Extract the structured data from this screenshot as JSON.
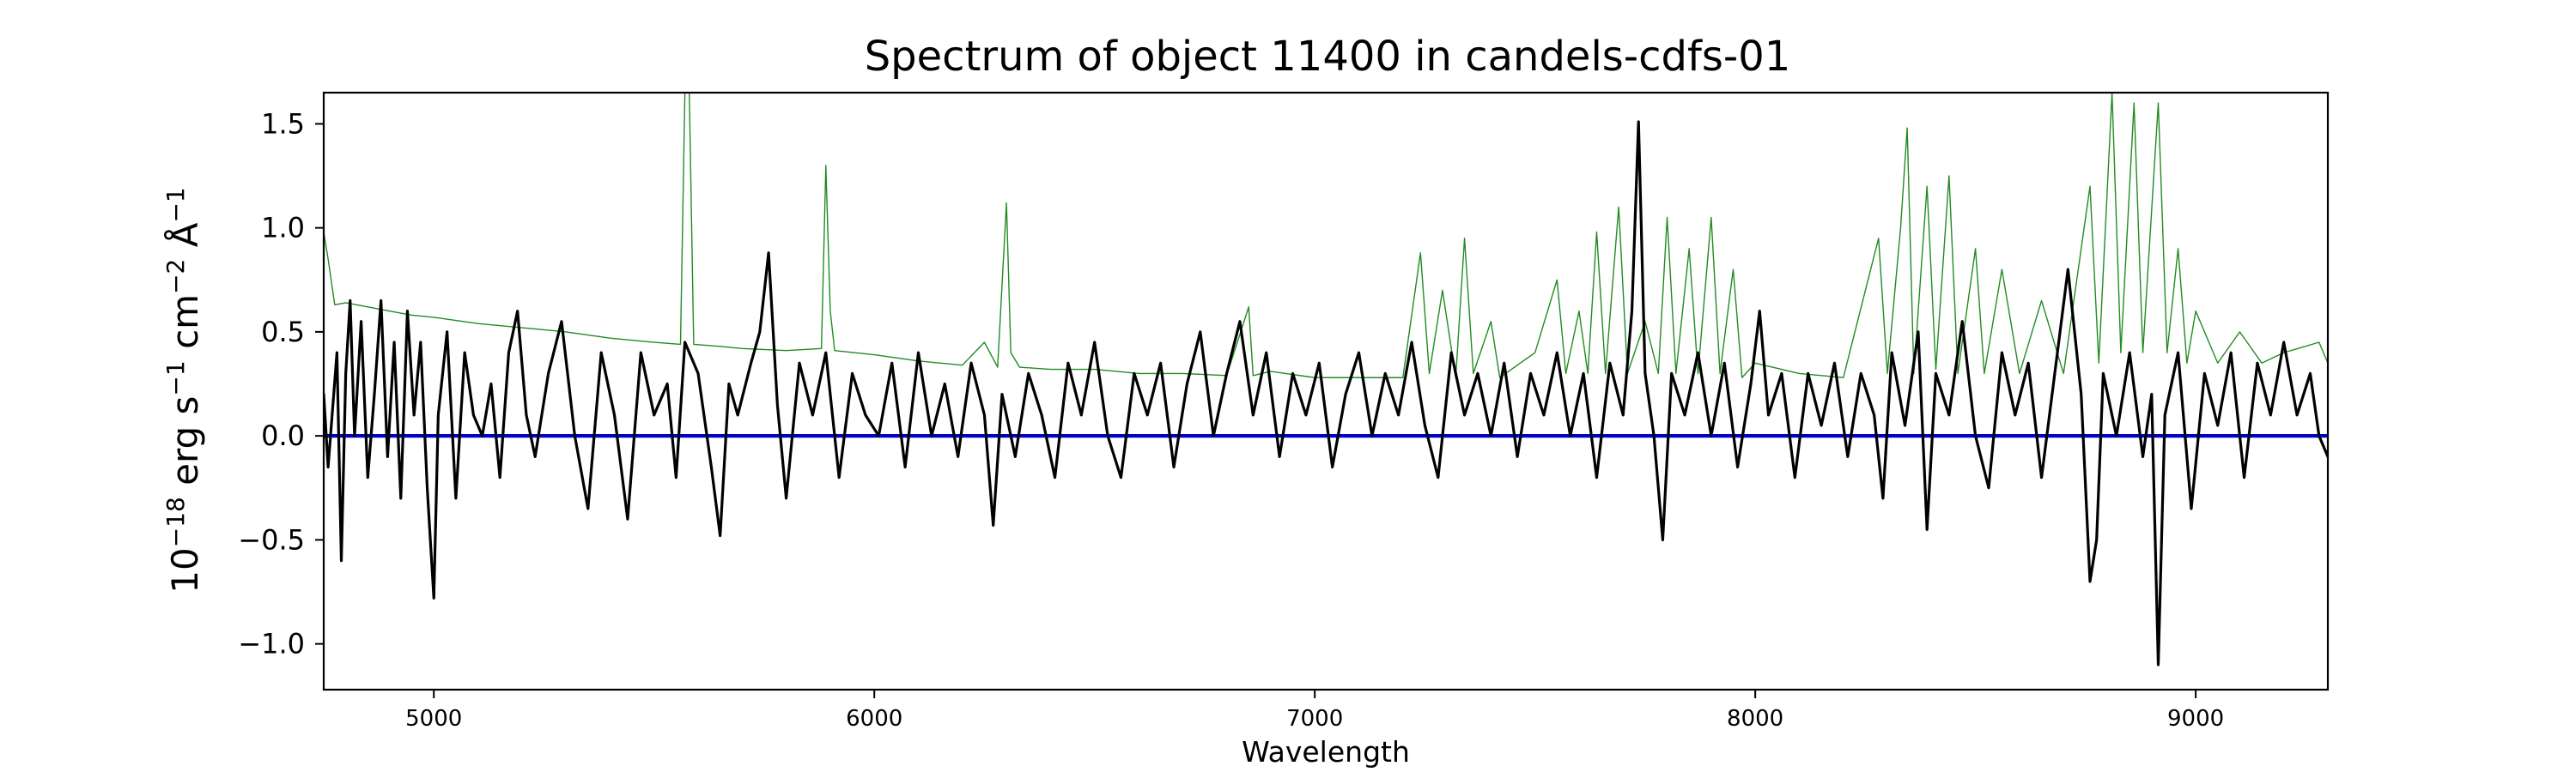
{
  "chart_data": {
    "type": "line",
    "title": "Spectrum of object 11400 in candels-cdfs-01",
    "xlabel": "Wavelength",
    "ylabel": "10^{−18} erg s^{−1} cm^{−2} Å^{−1}",
    "xlim": [
      4750,
      9300
    ],
    "ylim": [
      -1.22,
      1.65
    ],
    "x_ticks": [
      5000,
      6000,
      7000,
      8000,
      9000
    ],
    "x_tick_labels": [
      "5000",
      "6000",
      "7000",
      "8000",
      "9000"
    ],
    "y_ticks": [
      -1.0,
      -0.5,
      0.0,
      0.5,
      1.0,
      1.5
    ],
    "y_tick_labels": [
      "−1.0",
      "−0.5",
      "0.0",
      "0.5",
      "1.0",
      "1.5"
    ],
    "grid": false,
    "legend": "none",
    "colors": {
      "flux": "#000000",
      "noise": "#228b22",
      "zero": "#0000cd"
    },
    "series": [
      {
        "role": "flux",
        "color": "#000000",
        "points": [
          [
            4750,
            0.2
          ],
          [
            4760,
            -0.15
          ],
          [
            4780,
            0.4
          ],
          [
            4790,
            -0.6
          ],
          [
            4800,
            0.3
          ],
          [
            4810,
            0.65
          ],
          [
            4820,
            0.0
          ],
          [
            4835,
            0.55
          ],
          [
            4850,
            -0.2
          ],
          [
            4865,
            0.2
          ],
          [
            4880,
            0.65
          ],
          [
            4895,
            -0.1
          ],
          [
            4910,
            0.45
          ],
          [
            4925,
            -0.3
          ],
          [
            4940,
            0.6
          ],
          [
            4955,
            0.1
          ],
          [
            4970,
            0.45
          ],
          [
            4985,
            -0.25
          ],
          [
            5000,
            -0.78
          ],
          [
            5010,
            0.1
          ],
          [
            5030,
            0.5
          ],
          [
            5050,
            -0.3
          ],
          [
            5070,
            0.4
          ],
          [
            5090,
            0.1
          ],
          [
            5110,
            0.0
          ],
          [
            5130,
            0.25
          ],
          [
            5150,
            -0.2
          ],
          [
            5170,
            0.4
          ],
          [
            5190,
            0.6
          ],
          [
            5210,
            0.1
          ],
          [
            5230,
            -0.1
          ],
          [
            5260,
            0.3
          ],
          [
            5290,
            0.55
          ],
          [
            5320,
            0.0
          ],
          [
            5350,
            -0.35
          ],
          [
            5380,
            0.4
          ],
          [
            5410,
            0.1
          ],
          [
            5440,
            -0.4
          ],
          [
            5470,
            0.4
          ],
          [
            5500,
            0.1
          ],
          [
            5530,
            0.25
          ],
          [
            5550,
            -0.2
          ],
          [
            5570,
            0.45
          ],
          [
            5600,
            0.3
          ],
          [
            5630,
            -0.15
          ],
          [
            5650,
            -0.48
          ],
          [
            5670,
            0.25
          ],
          [
            5690,
            0.1
          ],
          [
            5720,
            0.35
          ],
          [
            5740,
            0.5
          ],
          [
            5760,
            0.88
          ],
          [
            5780,
            0.15
          ],
          [
            5800,
            -0.3
          ],
          [
            5830,
            0.35
          ],
          [
            5860,
            0.1
          ],
          [
            5890,
            0.4
          ],
          [
            5920,
            -0.2
          ],
          [
            5950,
            0.3
          ],
          [
            5980,
            0.1
          ],
          [
            6010,
            0.0
          ],
          [
            6040,
            0.35
          ],
          [
            6070,
            -0.15
          ],
          [
            6100,
            0.4
          ],
          [
            6130,
            0.0
          ],
          [
            6160,
            0.25
          ],
          [
            6190,
            -0.1
          ],
          [
            6220,
            0.35
          ],
          [
            6250,
            0.1
          ],
          [
            6270,
            -0.43
          ],
          [
            6290,
            0.2
          ],
          [
            6320,
            -0.1
          ],
          [
            6350,
            0.3
          ],
          [
            6380,
            0.1
          ],
          [
            6410,
            -0.2
          ],
          [
            6440,
            0.35
          ],
          [
            6470,
            0.1
          ],
          [
            6500,
            0.45
          ],
          [
            6530,
            0.0
          ],
          [
            6560,
            -0.2
          ],
          [
            6590,
            0.3
          ],
          [
            6620,
            0.1
          ],
          [
            6650,
            0.35
          ],
          [
            6680,
            -0.15
          ],
          [
            6710,
            0.25
          ],
          [
            6740,
            0.5
          ],
          [
            6770,
            0.0
          ],
          [
            6800,
            0.3
          ],
          [
            6830,
            0.55
          ],
          [
            6860,
            0.1
          ],
          [
            6890,
            0.4
          ],
          [
            6920,
            -0.1
          ],
          [
            6950,
            0.3
          ],
          [
            6980,
            0.1
          ],
          [
            7010,
            0.35
          ],
          [
            7040,
            -0.15
          ],
          [
            7070,
            0.2
          ],
          [
            7100,
            0.4
          ],
          [
            7130,
            0.0
          ],
          [
            7160,
            0.3
          ],
          [
            7190,
            0.1
          ],
          [
            7220,
            0.45
          ],
          [
            7250,
            0.05
          ],
          [
            7280,
            -0.2
          ],
          [
            7310,
            0.4
          ],
          [
            7340,
            0.1
          ],
          [
            7370,
            0.3
          ],
          [
            7400,
            0.0
          ],
          [
            7430,
            0.35
          ],
          [
            7460,
            -0.1
          ],
          [
            7490,
            0.3
          ],
          [
            7520,
            0.1
          ],
          [
            7550,
            0.4
          ],
          [
            7580,
            0.0
          ],
          [
            7610,
            0.3
          ],
          [
            7640,
            -0.2
          ],
          [
            7670,
            0.35
          ],
          [
            7700,
            0.1
          ],
          [
            7720,
            0.6
          ],
          [
            7735,
            1.51
          ],
          [
            7750,
            0.3
          ],
          [
            7770,
            0.0
          ],
          [
            7790,
            -0.5
          ],
          [
            7810,
            0.3
          ],
          [
            7840,
            0.1
          ],
          [
            7870,
            0.4
          ],
          [
            7900,
            0.0
          ],
          [
            7930,
            0.35
          ],
          [
            7960,
            -0.15
          ],
          [
            7990,
            0.25
          ],
          [
            8010,
            0.6
          ],
          [
            8030,
            0.1
          ],
          [
            8060,
            0.3
          ],
          [
            8090,
            -0.2
          ],
          [
            8120,
            0.3
          ],
          [
            8150,
            0.05
          ],
          [
            8180,
            0.35
          ],
          [
            8210,
            -0.1
          ],
          [
            8240,
            0.3
          ],
          [
            8270,
            0.1
          ],
          [
            8290,
            -0.3
          ],
          [
            8310,
            0.4
          ],
          [
            8340,
            0.05
          ],
          [
            8370,
            0.5
          ],
          [
            8390,
            -0.45
          ],
          [
            8410,
            0.3
          ],
          [
            8440,
            0.1
          ],
          [
            8470,
            0.55
          ],
          [
            8500,
            0.0
          ],
          [
            8530,
            -0.25
          ],
          [
            8560,
            0.4
          ],
          [
            8590,
            0.1
          ],
          [
            8620,
            0.35
          ],
          [
            8650,
            -0.2
          ],
          [
            8680,
            0.3
          ],
          [
            8710,
            0.8
          ],
          [
            8740,
            0.2
          ],
          [
            8760,
            -0.7
          ],
          [
            8775,
            -0.5
          ],
          [
            8790,
            0.3
          ],
          [
            8820,
            0.0
          ],
          [
            8850,
            0.4
          ],
          [
            8880,
            -0.1
          ],
          [
            8900,
            0.2
          ],
          [
            8915,
            -1.1
          ],
          [
            8930,
            0.1
          ],
          [
            8960,
            0.4
          ],
          [
            8990,
            -0.35
          ],
          [
            9020,
            0.3
          ],
          [
            9050,
            0.05
          ],
          [
            9080,
            0.4
          ],
          [
            9110,
            -0.2
          ],
          [
            9140,
            0.35
          ],
          [
            9170,
            0.1
          ],
          [
            9200,
            0.45
          ],
          [
            9230,
            0.1
          ],
          [
            9260,
            0.3
          ],
          [
            9280,
            0.0
          ],
          [
            9300,
            -0.1
          ]
        ]
      },
      {
        "role": "noise",
        "color": "#228b22",
        "points": [
          [
            4750,
            0.98
          ],
          [
            4760,
            0.85
          ],
          [
            4775,
            0.63
          ],
          [
            4800,
            0.64
          ],
          [
            4850,
            0.62
          ],
          [
            4900,
            0.6
          ],
          [
            4950,
            0.58
          ],
          [
            5000,
            0.57
          ],
          [
            5100,
            0.54
          ],
          [
            5200,
            0.52
          ],
          [
            5300,
            0.5
          ],
          [
            5400,
            0.47
          ],
          [
            5500,
            0.45
          ],
          [
            5560,
            0.44
          ],
          [
            5570,
            1.65
          ],
          [
            5580,
            1.65
          ],
          [
            5590,
            0.44
          ],
          [
            5650,
            0.43
          ],
          [
            5700,
            0.42
          ],
          [
            5800,
            0.41
          ],
          [
            5880,
            0.42
          ],
          [
            5890,
            1.3
          ],
          [
            5900,
            0.6
          ],
          [
            5910,
            0.41
          ],
          [
            6000,
            0.39
          ],
          [
            6100,
            0.36
          ],
          [
            6200,
            0.34
          ],
          [
            6250,
            0.45
          ],
          [
            6280,
            0.33
          ],
          [
            6300,
            1.12
          ],
          [
            6310,
            0.4
          ],
          [
            6330,
            0.33
          ],
          [
            6400,
            0.32
          ],
          [
            6500,
            0.32
          ],
          [
            6550,
            0.31
          ],
          [
            6600,
            0.3
          ],
          [
            6700,
            0.3
          ],
          [
            6800,
            0.29
          ],
          [
            6850,
            0.62
          ],
          [
            6860,
            0.29
          ],
          [
            6900,
            0.31
          ],
          [
            7000,
            0.28
          ],
          [
            7100,
            0.28
          ],
          [
            7200,
            0.28
          ],
          [
            7240,
            0.88
          ],
          [
            7260,
            0.3
          ],
          [
            7290,
            0.7
          ],
          [
            7320,
            0.28
          ],
          [
            7340,
            0.95
          ],
          [
            7360,
            0.3
          ],
          [
            7400,
            0.55
          ],
          [
            7420,
            0.28
          ],
          [
            7500,
            0.4
          ],
          [
            7550,
            0.75
          ],
          [
            7570,
            0.3
          ],
          [
            7600,
            0.6
          ],
          [
            7620,
            0.3
          ],
          [
            7640,
            0.98
          ],
          [
            7660,
            0.3
          ],
          [
            7690,
            1.1
          ],
          [
            7710,
            0.3
          ],
          [
            7750,
            0.55
          ],
          [
            7780,
            0.3
          ],
          [
            7800,
            1.05
          ],
          [
            7820,
            0.3
          ],
          [
            7850,
            0.9
          ],
          [
            7870,
            0.3
          ],
          [
            7900,
            1.05
          ],
          [
            7920,
            0.3
          ],
          [
            7950,
            0.8
          ],
          [
            7970,
            0.28
          ],
          [
            8000,
            0.35
          ],
          [
            8100,
            0.3
          ],
          [
            8200,
            0.28
          ],
          [
            8280,
            0.95
          ],
          [
            8300,
            0.3
          ],
          [
            8330,
            1.0
          ],
          [
            8345,
            1.48
          ],
          [
            8360,
            0.3
          ],
          [
            8390,
            1.2
          ],
          [
            8410,
            0.32
          ],
          [
            8440,
            1.25
          ],
          [
            8460,
            0.3
          ],
          [
            8500,
            0.9
          ],
          [
            8520,
            0.3
          ],
          [
            8560,
            0.8
          ],
          [
            8600,
            0.3
          ],
          [
            8650,
            0.65
          ],
          [
            8700,
            0.3
          ],
          [
            8760,
            1.2
          ],
          [
            8780,
            0.35
          ],
          [
            8810,
            1.65
          ],
          [
            8830,
            0.4
          ],
          [
            8860,
            1.6
          ],
          [
            8880,
            0.4
          ],
          [
            8915,
            1.6
          ],
          [
            8935,
            0.4
          ],
          [
            8960,
            0.9
          ],
          [
            8980,
            0.35
          ],
          [
            9000,
            0.6
          ],
          [
            9050,
            0.35
          ],
          [
            9100,
            0.5
          ],
          [
            9150,
            0.35
          ],
          [
            9200,
            0.4
          ],
          [
            9280,
            0.45
          ],
          [
            9300,
            0.35
          ]
        ]
      },
      {
        "role": "zero",
        "color": "#0000cd",
        "points": [
          [
            4750,
            0.0
          ],
          [
            9300,
            0.0
          ]
        ]
      }
    ]
  }
}
